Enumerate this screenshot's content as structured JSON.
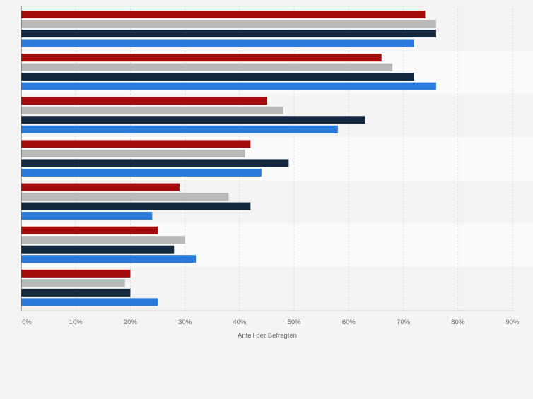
{
  "chart_data": {
    "type": "bar",
    "orientation": "horizontal",
    "title": "",
    "xlabel": "Anteil der Befragten",
    "ylabel": "",
    "xlim": [
      0,
      90
    ],
    "x_ticks": [
      "0%",
      "10%",
      "20%",
      "30%",
      "40%",
      "50%",
      "60%",
      "70%",
      "80%",
      "90%"
    ],
    "categories": [
      "",
      "",
      "",
      "",
      "",
      "",
      ""
    ],
    "grid": true,
    "legend": "none",
    "series": [
      {
        "color": "#a30c0c",
        "values": [
          74,
          66,
          45,
          42,
          29,
          25,
          20
        ]
      },
      {
        "color": "#b9b9b9",
        "values": [
          76,
          68,
          48,
          41,
          38,
          30,
          19
        ]
      },
      {
        "color": "#13283f",
        "values": [
          76,
          72,
          63,
          49,
          42,
          28,
          20
        ]
      },
      {
        "color": "#2b7bdc",
        "values": [
          72,
          76,
          58,
          44,
          24,
          32,
          25
        ]
      }
    ]
  }
}
